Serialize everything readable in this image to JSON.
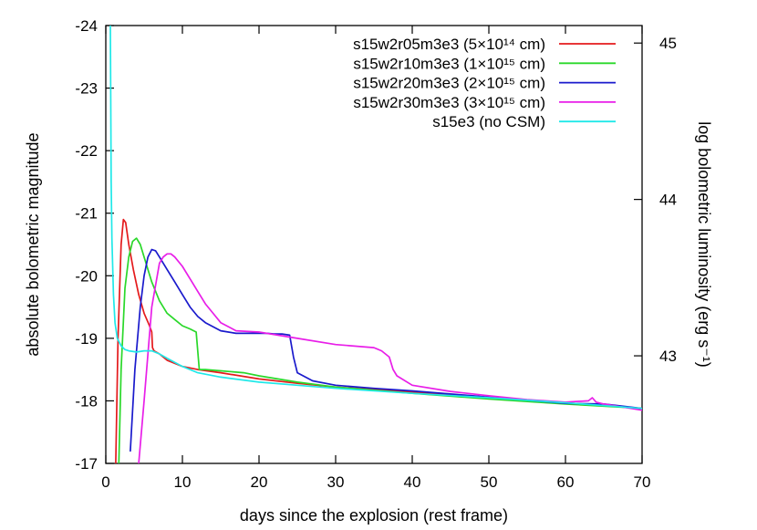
{
  "chart_data": {
    "type": "line",
    "xlabel": "days since the explosion (rest frame)",
    "ylabel": "absolute bolometric magnitude",
    "y2label": "log bolometric luminosity (erg s⁻¹)",
    "xlim": [
      0,
      70
    ],
    "ylim": [
      -17,
      -24
    ],
    "y2lim": [
      42.312,
      45.112
    ],
    "x_ticks": [
      0,
      10,
      20,
      30,
      40,
      50,
      60,
      70
    ],
    "y_ticks": [
      -17,
      -18,
      -19,
      -20,
      -21,
      -22,
      -23,
      -24
    ],
    "y2_ticks": [
      43,
      44,
      45
    ],
    "grid": false,
    "legend_position": "top-right",
    "series": [
      {
        "name": "s15w2r05m3e3 (5×10¹⁴ cm)",
        "color": "#e41a1c",
        "x": [
          1.3,
          1.6,
          2.0,
          2.3,
          2.6,
          3.0,
          3.6,
          4.3,
          5.0,
          5.7,
          6.0,
          6.1,
          6.3,
          7,
          8,
          10,
          12,
          15,
          20,
          25,
          30,
          40,
          50,
          60,
          70
        ],
        "y": [
          -17.0,
          -19.0,
          -20.5,
          -20.9,
          -20.85,
          -20.5,
          -20.1,
          -19.7,
          -19.4,
          -19.2,
          -19.1,
          -18.85,
          -18.8,
          -18.75,
          -18.65,
          -18.55,
          -18.5,
          -18.45,
          -18.35,
          -18.28,
          -18.22,
          -18.14,
          -18.05,
          -17.97,
          -17.88
        ]
      },
      {
        "name": "s15w2r10m3e3 (1×10¹⁵ cm)",
        "color": "#2ad82a",
        "x": [
          1.7,
          2.0,
          2.5,
          3.0,
          3.5,
          4.0,
          4.5,
          5.0,
          6.0,
          7.0,
          8.0,
          9.0,
          10.0,
          11.0,
          11.8,
          12.0,
          12.2,
          13,
          15,
          18,
          20,
          25,
          30,
          40,
          50,
          60,
          70
        ],
        "y": [
          -17.0,
          -18.5,
          -19.8,
          -20.3,
          -20.55,
          -20.6,
          -20.5,
          -20.3,
          -19.9,
          -19.6,
          -19.4,
          -19.3,
          -19.2,
          -19.15,
          -19.1,
          -18.8,
          -18.5,
          -18.5,
          -18.48,
          -18.45,
          -18.4,
          -18.3,
          -18.22,
          -18.12,
          -18.03,
          -17.95,
          -17.88
        ]
      },
      {
        "name": "s15w2r20m3e3 (2×10¹⁵ cm)",
        "color": "#1a1acc",
        "x": [
          3.2,
          3.8,
          4.5,
          5.0,
          5.5,
          6.0,
          6.5,
          7.0,
          8.0,
          9.0,
          10,
          11,
          12,
          13,
          15,
          17,
          19,
          20,
          21,
          22,
          23,
          24,
          24.5,
          25,
          27,
          30,
          35,
          40,
          50,
          60,
          65,
          70
        ],
        "y": [
          -17.2,
          -18.5,
          -19.5,
          -20.0,
          -20.3,
          -20.42,
          -20.4,
          -20.3,
          -20.1,
          -19.9,
          -19.7,
          -19.5,
          -19.35,
          -19.25,
          -19.12,
          -19.08,
          -19.08,
          -19.08,
          -19.08,
          -19.07,
          -19.07,
          -19.05,
          -18.7,
          -18.45,
          -18.32,
          -18.25,
          -18.2,
          -18.16,
          -18.06,
          -17.96,
          -17.95,
          -17.88
        ]
      },
      {
        "name": "s15w2r30m3e3 (3×10¹⁵ cm)",
        "color": "#e81ee8",
        "x": [
          4.3,
          5,
          6,
          7,
          7.5,
          8,
          8.5,
          9,
          10,
          11,
          12,
          13,
          14,
          15,
          17,
          20,
          25,
          30,
          35,
          36,
          37,
          37.5,
          38,
          40,
          45,
          50,
          55,
          60,
          63,
          63.5,
          64,
          65,
          70
        ],
        "y": [
          -17.0,
          -18.0,
          -19.5,
          -20.2,
          -20.3,
          -20.35,
          -20.35,
          -20.3,
          -20.15,
          -19.95,
          -19.75,
          -19.55,
          -19.4,
          -19.25,
          -19.12,
          -19.1,
          -19.0,
          -18.9,
          -18.85,
          -18.8,
          -18.7,
          -18.5,
          -18.4,
          -18.25,
          -18.15,
          -18.08,
          -18.02,
          -17.98,
          -18.0,
          -18.05,
          -17.98,
          -17.95,
          -17.85
        ]
      },
      {
        "name": "s15e3 (no CSM)",
        "color": "#20e8e8",
        "x": [
          0.6,
          0.7,
          0.8,
          1.0,
          1.2,
          1.5,
          2.0,
          2.5,
          3.0,
          4.0,
          5.0,
          6.0,
          7.0,
          8.0,
          10,
          12,
          15,
          20,
          25,
          30,
          40,
          50,
          60,
          70
        ],
        "y": [
          -24.0,
          -21.5,
          -20.6,
          -19.7,
          -19.25,
          -19.0,
          -18.88,
          -18.82,
          -18.8,
          -18.78,
          -18.8,
          -18.8,
          -18.75,
          -18.68,
          -18.55,
          -18.45,
          -18.38,
          -18.3,
          -18.25,
          -18.2,
          -18.12,
          -18.05,
          -17.97,
          -17.88
        ]
      }
    ]
  }
}
